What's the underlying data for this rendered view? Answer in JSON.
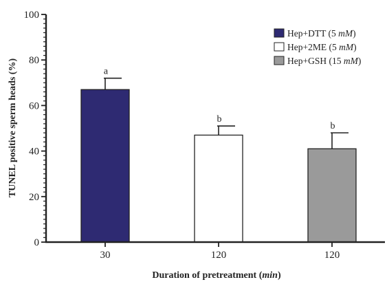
{
  "chart_data": {
    "type": "bar",
    "title": "",
    "xlabel": "Duration of pretreatment",
    "xlabel_unit": "min",
    "ylabel": "TUNEL positive sperm heads (%)",
    "ylim": [
      0,
      100
    ],
    "yticks": [
      0,
      20,
      40,
      60,
      80,
      100
    ],
    "categories": [
      "30",
      "120",
      "120"
    ],
    "series": [
      {
        "name": "Hep+DTT",
        "conc": "(5 ",
        "unit": "mM",
        "close": ")",
        "value": 67,
        "error": 5,
        "sig": "a",
        "color": "#2e2a72"
      },
      {
        "name": "Hep+2ME",
        "conc": "(5 ",
        "unit": "mM",
        "close": ")",
        "value": 47,
        "error": 4,
        "sig": "b",
        "color": "#ffffff"
      },
      {
        "name": "Hep+GSH",
        "conc": "(15 ",
        "unit": "mM",
        "close": ")",
        "value": 41,
        "error": 7,
        "sig": "b",
        "color": "#9a9a9a"
      }
    ],
    "legend_position": "top-right",
    "grid": false
  }
}
